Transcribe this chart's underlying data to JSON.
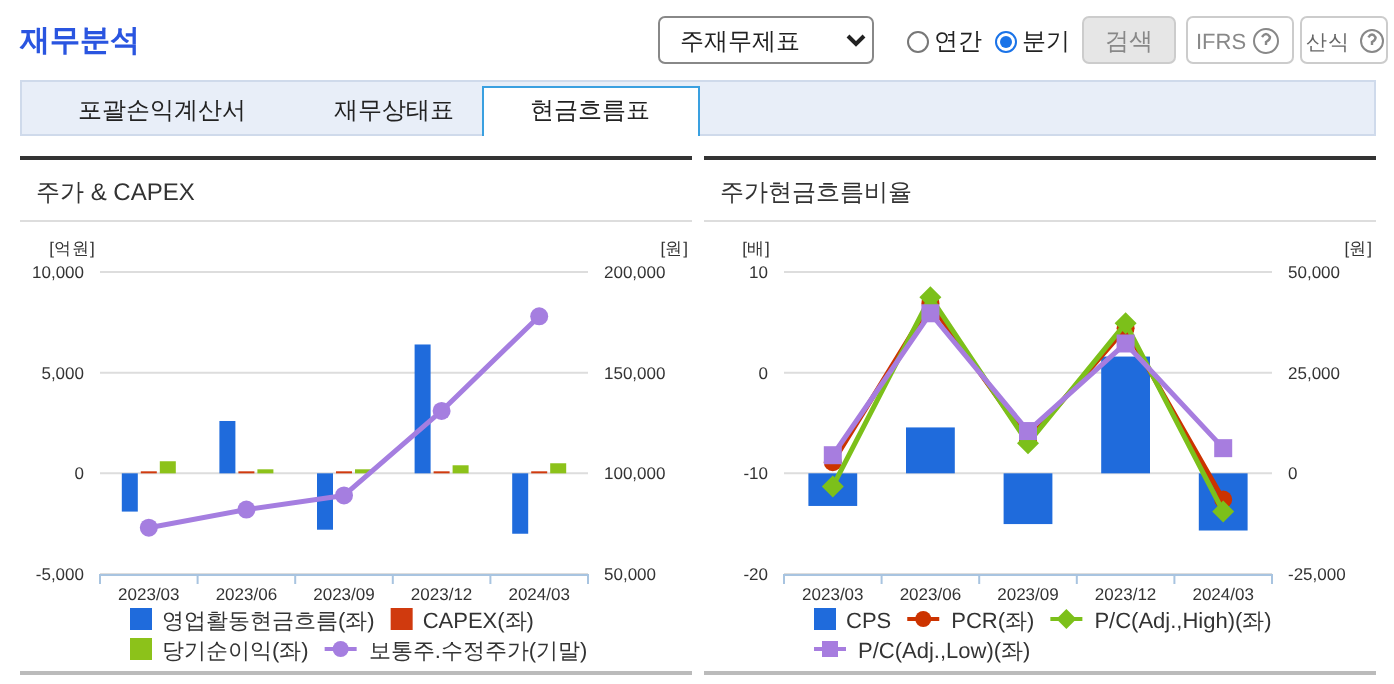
{
  "chart_data": [
    {
      "type": "other",
      "title": "재무분석",
      "annotations": [
        "주재무제표",
        "연간",
        "분기",
        "검색",
        "IFRS",
        "산식",
        "포괄손익계산서",
        "재무상태표",
        "현금흐름표"
      ]
    },
    {
      "type": "bar",
      "title": "주가 & CAPEX",
      "ylabel": "[억원]",
      "y2label": "[원]",
      "categories": [
        "2023/03",
        "2023/06",
        "2023/09",
        "2023/12",
        "2024/03"
      ],
      "ylim": [
        -5000,
        10000
      ],
      "yticks": [
        {
          "value": -5000,
          "label": "-5,000"
        },
        0,
        {
          "value": 5000,
          "label": "5,000"
        },
        {
          "value": 10000,
          "label": "10,000"
        }
      ],
      "y2lim": [
        50000,
        200000
      ],
      "y2ticks": [
        {
          "value": 50000,
          "label": "50,000"
        },
        {
          "value": 100000,
          "label": "100,000"
        },
        {
          "value": 150000,
          "label": "150,000"
        },
        {
          "value": 200000,
          "label": "200,000"
        }
      ],
      "grid": "y",
      "legend": "bottom",
      "series": [
        {
          "name": "영업활동현금흐름(좌)",
          "color": "#1f6bdc",
          "values": [
            -1900,
            2600,
            -2800,
            6400,
            -3000
          ]
        },
        {
          "name": "CAPEX(좌)",
          "color": "#d03a0e",
          "values": [
            100,
            100,
            100,
            100,
            100
          ]
        },
        {
          "name": "당기순이익(좌)",
          "color": "#8cc21a",
          "values": [
            600,
            200,
            200,
            400,
            500
          ]
        },
        {
          "name": "보통주.수정주가(기말)",
          "type": "line",
          "axis": "y2",
          "marker": "circle",
          "color": "#a57ee0",
          "values": [
            73000,
            82000,
            89000,
            131000,
            178000
          ]
        }
      ]
    },
    {
      "type": "bar",
      "title": "주가현금흐름비율",
      "ylabel": "[배]",
      "y2label": "[원]",
      "categories": [
        "2023/03",
        "2023/06",
        "2023/09",
        "2023/12",
        "2024/03"
      ],
      "ylim": [
        -20,
        10
      ],
      "yticks": [
        -20,
        -10,
        0,
        10
      ],
      "y2lim": [
        -25000,
        50000
      ],
      "y2ticks": [
        {
          "value": -25000,
          "label": "-25,000"
        },
        0,
        {
          "value": 25000,
          "label": "25,000"
        },
        {
          "value": 50000,
          "label": "50,000"
        }
      ],
      "grid": "y",
      "legend": "bottom",
      "series": [
        {
          "name": "CPS",
          "color": "#1f6bdc",
          "axis": "y2",
          "values": [
            -8100,
            11400,
            -12600,
            29000,
            -14200
          ]
        },
        {
          "name": "PCR(좌)",
          "type": "line",
          "marker": "circle",
          "color": "#cc3300",
          "values": [
            -8.9,
            6.9,
            -6.7,
            4.4,
            -12.6
          ]
        },
        {
          "name": "P/C(Adj.,High)(좌)",
          "type": "line",
          "marker": "diamond",
          "color": "#7cc01a",
          "values": [
            -11.3,
            7.5,
            -7.0,
            4.9,
            -13.8
          ]
        },
        {
          "name": "P/C(Adj.,Low)(좌)",
          "type": "line",
          "marker": "square",
          "color": "#a77ddf",
          "values": [
            -8.2,
            5.9,
            -5.8,
            2.9,
            -7.5
          ]
        }
      ]
    }
  ]
}
